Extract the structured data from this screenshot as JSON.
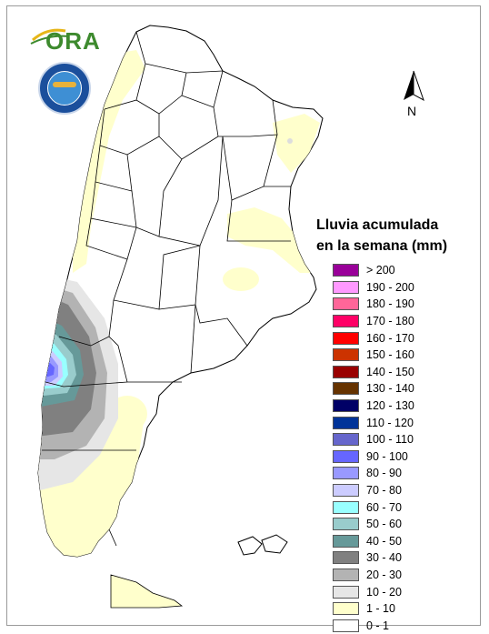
{
  "map": {
    "logo_text": "ORA",
    "north_label": "N",
    "legend_title_line1": "Lluvia acumulada",
    "legend_title_line2": "en la semana (mm)",
    "legend": [
      {
        "label": "> 200",
        "color": "#990099"
      },
      {
        "label": "190 - 200",
        "color": "#ff99ff"
      },
      {
        "label": "180 - 190",
        "color": "#ff6699"
      },
      {
        "label": "170 - 180",
        "color": "#ff0066"
      },
      {
        "label": "160 - 170",
        "color": "#ff0000"
      },
      {
        "label": "150 - 160",
        "color": "#cc3300"
      },
      {
        "label": "140 - 150",
        "color": "#990000"
      },
      {
        "label": "130 - 140",
        "color": "#663300"
      },
      {
        "label": "120 - 130",
        "color": "#000066"
      },
      {
        "label": "110 - 120",
        "color": "#003399"
      },
      {
        "label": "100 - 110",
        "color": "#6666cc"
      },
      {
        "label": "90 - 100",
        "color": "#6666ff"
      },
      {
        "label": "80 - 90",
        "color": "#9999ff"
      },
      {
        "label": "70 - 80",
        "color": "#ccccff"
      },
      {
        "label": "60 - 70",
        "color": "#99ffff"
      },
      {
        "label": "50 - 60",
        "color": "#99cccc"
      },
      {
        "label": "40 - 50",
        "color": "#669999"
      },
      {
        "label": "30 - 40",
        "color": "#808080"
      },
      {
        "label": "20 - 30",
        "color": "#b3b3b3"
      },
      {
        "label": "10 - 20",
        "color": "#e6e6e6"
      },
      {
        "label": "1 - 10",
        "color": "#ffffcc"
      },
      {
        "label": "0 - 1",
        "color": "#ffffff"
      }
    ]
  }
}
